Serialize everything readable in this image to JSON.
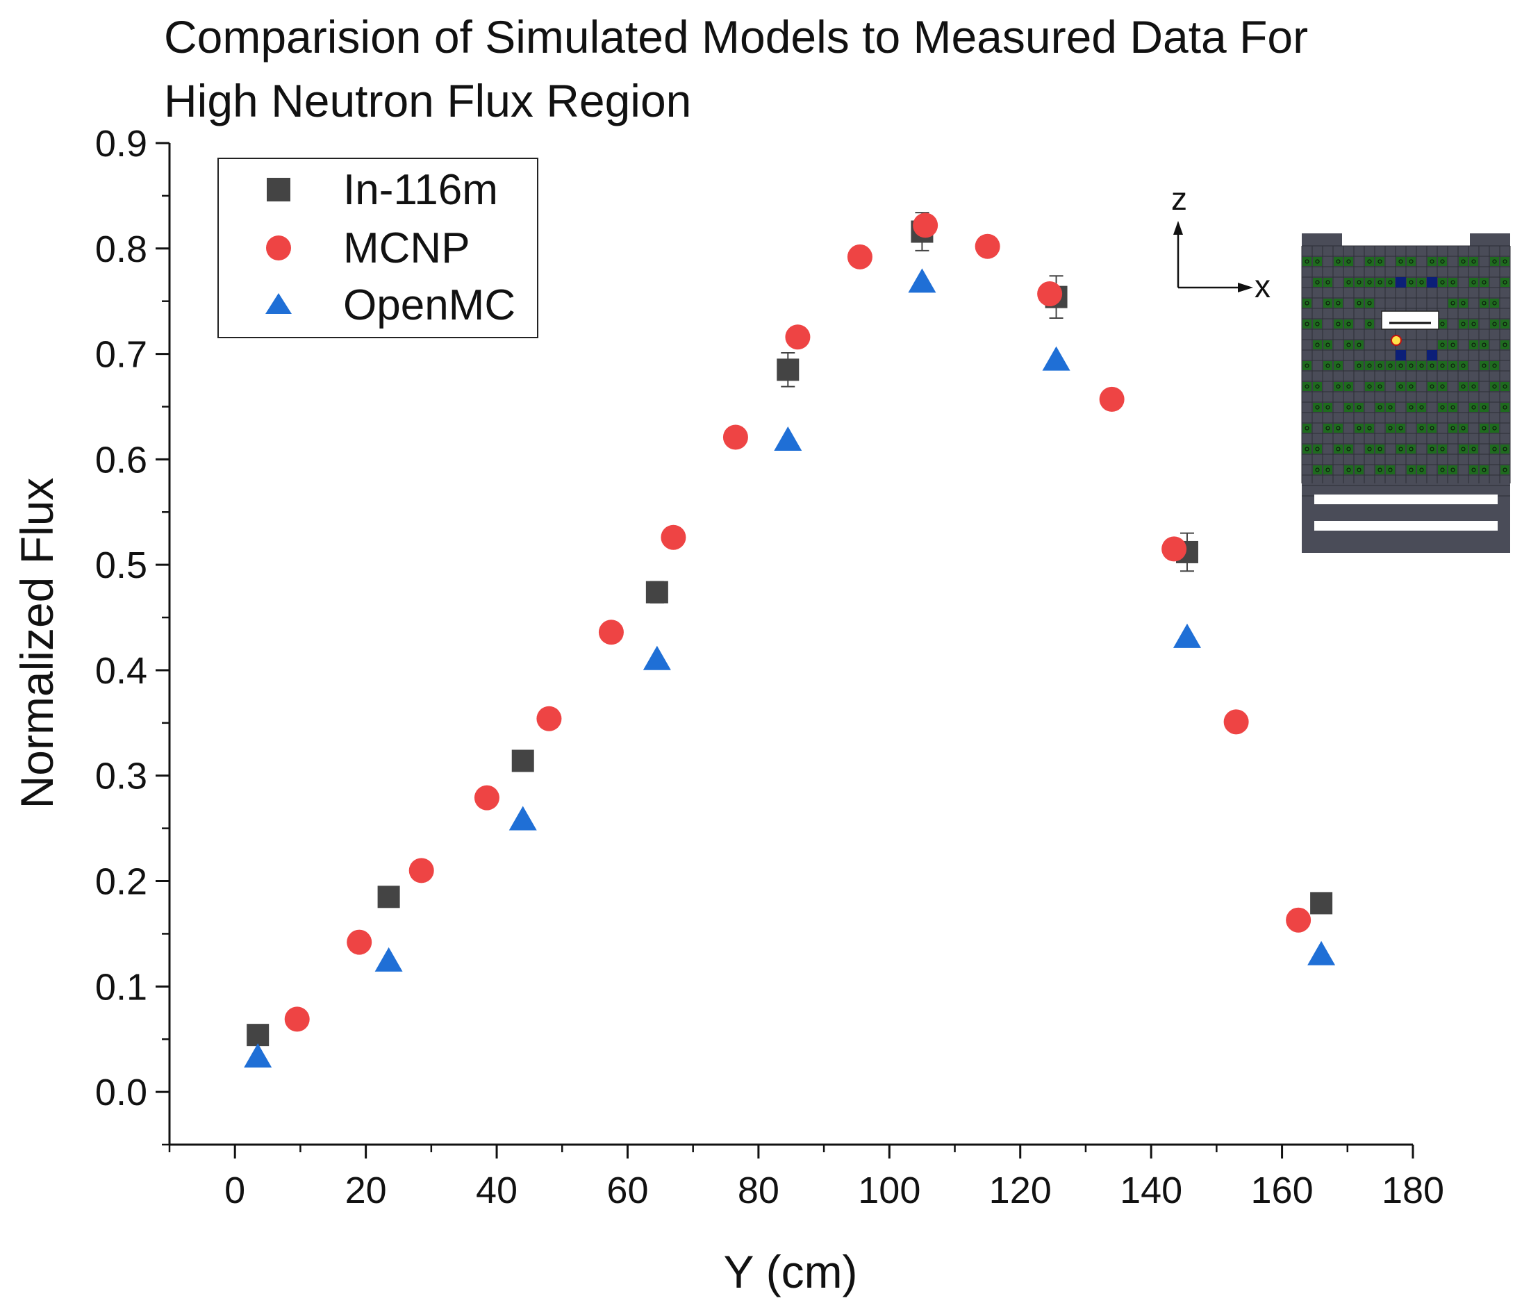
{
  "chart_data": {
    "type": "scatter",
    "title_lines": [
      "Comparision of Simulated Models to Measured Data For",
      "High Neutron Flux Region"
    ],
    "xlabel": "Y (cm)",
    "ylabel": "Normalized Flux",
    "xlim": [
      -10,
      180
    ],
    "ylim": [
      -0.05,
      0.9
    ],
    "xticks": [
      0,
      20,
      40,
      60,
      80,
      100,
      120,
      140,
      160,
      180
    ],
    "yticks": [
      0.0,
      0.1,
      0.2,
      0.3,
      0.4,
      0.5,
      0.6,
      0.7,
      0.8,
      0.9
    ],
    "xtick_labels": [
      "0",
      "20",
      "40",
      "60",
      "80",
      "100",
      "120",
      "140",
      "160",
      "180"
    ],
    "ytick_labels": [
      "0.0",
      "0.1",
      "0.2",
      "0.3",
      "0.4",
      "0.5",
      "0.6",
      "0.7",
      "0.8",
      "0.9"
    ],
    "legend_position": "top-left",
    "series": [
      {
        "name": "In-116m",
        "marker": "square",
        "color": "#444444",
        "points": [
          {
            "x": 3.5,
            "y": 0.054,
            "err": 0.0
          },
          {
            "x": 23.5,
            "y": 0.185,
            "err": 0.0
          },
          {
            "x": 44.0,
            "y": 0.314,
            "err": 0.0
          },
          {
            "x": 64.5,
            "y": 0.474,
            "err": 0.01
          },
          {
            "x": 84.5,
            "y": 0.685,
            "err": 0.016
          },
          {
            "x": 105.0,
            "y": 0.816,
            "err": 0.018
          },
          {
            "x": 125.5,
            "y": 0.754,
            "err": 0.02
          },
          {
            "x": 145.5,
            "y": 0.512,
            "err": 0.018
          },
          {
            "x": 166.0,
            "y": 0.179,
            "err": 0.0
          }
        ]
      },
      {
        "name": "MCNP",
        "marker": "circle",
        "color": "#ee4444",
        "points": [
          {
            "x": 9.5,
            "y": 0.069
          },
          {
            "x": 19.0,
            "y": 0.142
          },
          {
            "x": 28.5,
            "y": 0.21
          },
          {
            "x": 38.5,
            "y": 0.279
          },
          {
            "x": 48.0,
            "y": 0.354
          },
          {
            "x": 57.5,
            "y": 0.436
          },
          {
            "x": 67.0,
            "y": 0.526
          },
          {
            "x": 76.5,
            "y": 0.621
          },
          {
            "x": 86.0,
            "y": 0.716
          },
          {
            "x": 95.5,
            "y": 0.792
          },
          {
            "x": 105.5,
            "y": 0.822
          },
          {
            "x": 115.0,
            "y": 0.802
          },
          {
            "x": 124.5,
            "y": 0.757
          },
          {
            "x": 134.0,
            "y": 0.657
          },
          {
            "x": 143.5,
            "y": 0.515
          },
          {
            "x": 153.0,
            "y": 0.351
          },
          {
            "x": 162.5,
            "y": 0.163
          }
        ]
      },
      {
        "name": "OpenMC",
        "marker": "triangle",
        "color": "#1f6fd6",
        "points": [
          {
            "x": 3.5,
            "y": 0.033
          },
          {
            "x": 23.5,
            "y": 0.124
          },
          {
            "x": 44.0,
            "y": 0.258
          },
          {
            "x": 64.5,
            "y": 0.41
          },
          {
            "x": 84.5,
            "y": 0.618
          },
          {
            "x": 105.0,
            "y": 0.768
          },
          {
            "x": 125.5,
            "y": 0.694
          },
          {
            "x": 145.5,
            "y": 0.431
          },
          {
            "x": 166.0,
            "y": 0.13
          }
        ]
      }
    ],
    "inset": {
      "axis_labels": [
        "z",
        "x"
      ],
      "colors": {
        "background": "#4a4c58",
        "grid": "#2c2e36",
        "fuel": "#1f6b1f",
        "rod": "#0c1f78",
        "source_marker": "#ffe44a",
        "slot": "#ffffff"
      }
    }
  }
}
